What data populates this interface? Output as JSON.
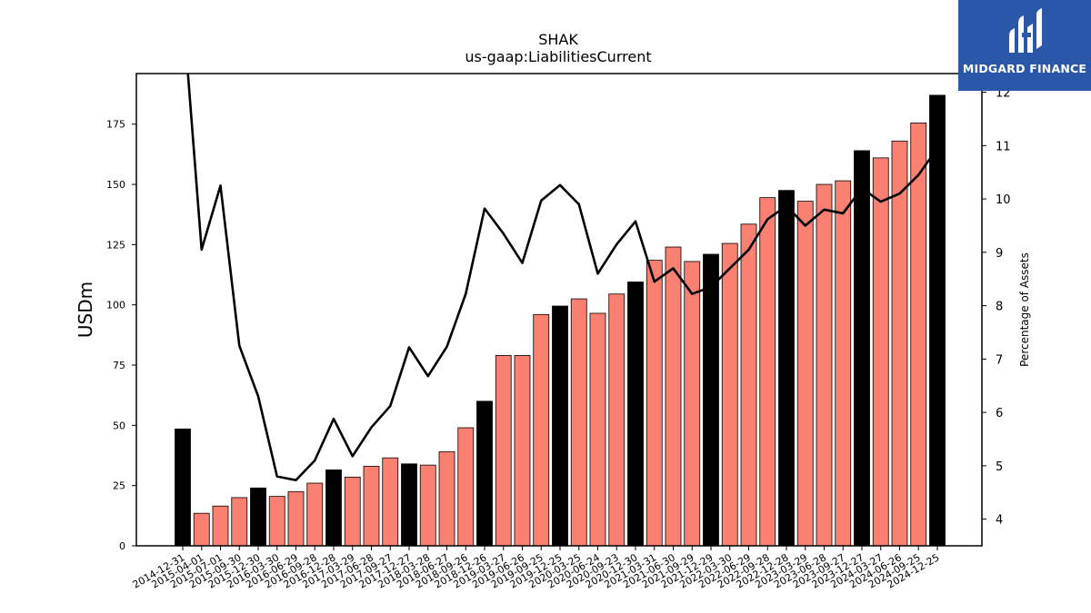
{
  "chart_data": {
    "type": "bar",
    "title": "SHAK",
    "subtitle": "us-gaap:LiabilitiesCurrent",
    "ylabel": "USDm",
    "y2label": "Percentage of Assets",
    "ylim": [
      0,
      196
    ],
    "y2lim": [
      3.5,
      12.35
    ],
    "yticks": [
      0,
      25,
      50,
      75,
      100,
      125,
      150,
      175
    ],
    "y2ticks": [
      4,
      5,
      6,
      7,
      8,
      9,
      10,
      11,
      12
    ],
    "categories": [
      "2014-12-31",
      "2015-04-01",
      "2015-07-01",
      "2015-09-30",
      "2015-12-30",
      "2016-03-30",
      "2016-06-29",
      "2016-09-28",
      "2016-12-28",
      "2017-03-29",
      "2017-06-28",
      "2017-09-27",
      "2017-12-27",
      "2018-03-28",
      "2018-06-27",
      "2018-09-26",
      "2018-12-26",
      "2019-03-27",
      "2019-06-26",
      "2019-09-25",
      "2019-12-25",
      "2020-03-25",
      "2020-06-24",
      "2020-09-23",
      "2020-12-30",
      "2021-03-31",
      "2021-06-30",
      "2021-09-29",
      "2021-12-29",
      "2022-03-30",
      "2022-06-29",
      "2022-09-28",
      "2022-12-28",
      "2023-03-29",
      "2023-06-28",
      "2023-09-27",
      "2023-12-27",
      "2024-03-27",
      "2024-06-26",
      "2024-09-25",
      "2024-12-25"
    ],
    "series": [
      {
        "kind": "bar",
        "axis": "left",
        "values": [
          48.5,
          13.5,
          16.5,
          20,
          24,
          20.5,
          22.5,
          26,
          31.5,
          28.5,
          33,
          36.5,
          34,
          33.5,
          39,
          49,
          60,
          79,
          79,
          96,
          99.5,
          102.5,
          96.5,
          104.5,
          109.5,
          118.5,
          124,
          118,
          121,
          125.5,
          133.5,
          144.5,
          147.5,
          143,
          150,
          151.5,
          164,
          161,
          168,
          175.5,
          187
        ],
        "fiscal_year_end": [
          true,
          false,
          false,
          false,
          true,
          false,
          false,
          false,
          true,
          false,
          false,
          false,
          true,
          false,
          false,
          false,
          true,
          false,
          false,
          false,
          true,
          false,
          false,
          false,
          true,
          false,
          false,
          false,
          true,
          false,
          false,
          false,
          true,
          false,
          false,
          false,
          true,
          false,
          false,
          false,
          true
        ],
        "colors": {
          "quarter": "#fa8072",
          "fiscal_year_end": "#000000"
        }
      },
      {
        "kind": "line",
        "axis": "right",
        "color": "#000000",
        "values": [
          13.6,
          9.05,
          10.25,
          7.25,
          6.3,
          4.8,
          4.73,
          5.1,
          5.88,
          5.18,
          5.72,
          6.12,
          7.22,
          6.68,
          7.23,
          8.22,
          9.82,
          9.35,
          8.8,
          9.97,
          10.26,
          9.9,
          8.6,
          9.15,
          9.58,
          8.45,
          8.7,
          8.22,
          8.35,
          8.7,
          9.05,
          9.62,
          9.87,
          9.5,
          9.8,
          9.73,
          10.2,
          9.95,
          10.1,
          10.45,
          10.95
        ]
      }
    ]
  },
  "logo": {
    "text": "MIDGARD FINANCE",
    "colors": {
      "background": "#2a57a8",
      "foreground": "#ffffff"
    }
  }
}
